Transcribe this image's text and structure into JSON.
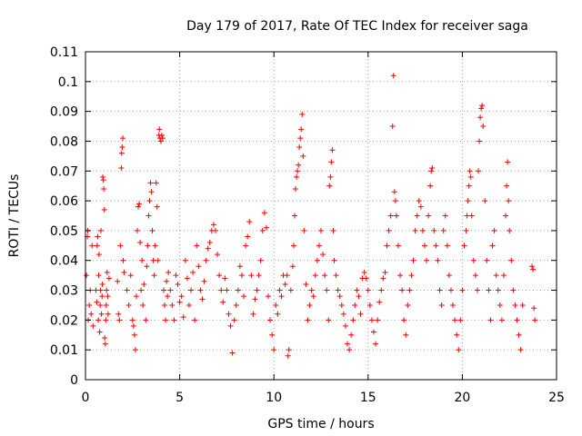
{
  "chart_data": {
    "type": "scatter",
    "title": "Day 179 of 2017, Rate Of TEC Index for receiver saga",
    "xlabel": "GPS time / hours",
    "ylabel": "ROTI / TECUs",
    "xlim": [
      0,
      25
    ],
    "ylim": [
      0,
      0.11
    ],
    "xticks": [
      0,
      5,
      10,
      15,
      20,
      25
    ],
    "yticks": [
      0,
      0.01,
      0.02,
      0.03,
      0.04,
      0.05,
      0.06,
      0.07,
      0.08,
      0.09,
      0.1,
      0.11
    ],
    "xtick_labels": [
      "0",
      "5",
      "10",
      "15",
      "20",
      "25"
    ],
    "ytick_labels": [
      "0",
      "0.01",
      "0.02",
      "0.03",
      "0.04",
      "0.05",
      "0.06",
      "0.07",
      "0.08",
      "0.09",
      "0.1",
      "0.11"
    ],
    "grid": true,
    "marker": "plus",
    "marker_color": "#ff0000",
    "series": [
      {
        "points": [
          [
            0.05,
            0.035
          ],
          [
            0.1,
            0.048
          ],
          [
            0.12,
            0.05
          ],
          [
            0.15,
            0.02
          ],
          [
            0.2,
            0.025
          ],
          [
            0.25,
            0.03
          ],
          [
            0.3,
            0.022
          ],
          [
            0.35,
            0.045
          ],
          [
            0.4,
            0.018
          ],
          [
            0.55,
            0.03
          ],
          [
            0.6,
            0.026
          ],
          [
            0.62,
            0.045
          ],
          [
            0.65,
            0.048
          ],
          [
            0.68,
            0.02
          ],
          [
            0.7,
            0.035
          ],
          [
            0.72,
            0.042
          ],
          [
            0.75,
            0.016
          ],
          [
            0.78,
            0.025
          ],
          [
            0.8,
            0.03
          ],
          [
            0.82,
            0.05
          ],
          [
            0.85,
            0.022
          ],
          [
            0.88,
            0.028
          ],
          [
            0.9,
            0.032
          ],
          [
            0.92,
            0.068
          ],
          [
            0.95,
            0.067
          ],
          [
            0.97,
            0.064
          ],
          [
            1.0,
            0.057
          ],
          [
            1.02,
            0.014
          ],
          [
            1.05,
            0.012
          ],
          [
            1.08,
            0.02
          ],
          [
            1.1,
            0.025
          ],
          [
            1.12,
            0.03
          ],
          [
            1.15,
            0.036
          ],
          [
            1.18,
            0.028
          ],
          [
            1.2,
            0.022
          ],
          [
            1.25,
            0.034
          ],
          [
            1.7,
            0.033
          ],
          [
            1.75,
            0.022
          ],
          [
            1.8,
            0.02
          ],
          [
            1.85,
            0.045
          ],
          [
            1.9,
            0.071
          ],
          [
            1.92,
            0.076
          ],
          [
            1.95,
            0.078
          ],
          [
            1.98,
            0.081
          ],
          [
            2.0,
            0.04
          ],
          [
            2.05,
            0.036
          ],
          [
            2.2,
            0.03
          ],
          [
            2.3,
            0.025
          ],
          [
            2.4,
            0.035
          ],
          [
            2.5,
            0.02
          ],
          [
            2.55,
            0.018
          ],
          [
            2.6,
            0.015
          ],
          [
            2.65,
            0.01
          ],
          [
            2.7,
            0.028
          ],
          [
            2.75,
            0.05
          ],
          [
            2.8,
            0.058
          ],
          [
            2.85,
            0.059
          ],
          [
            2.9,
            0.046
          ],
          [
            2.95,
            0.03
          ],
          [
            3.0,
            0.04
          ],
          [
            3.05,
            0.025
          ],
          [
            3.1,
            0.032
          ],
          [
            3.2,
            0.02
          ],
          [
            3.25,
            0.038
          ],
          [
            3.3,
            0.045
          ],
          [
            3.35,
            0.055
          ],
          [
            3.4,
            0.06
          ],
          [
            3.45,
            0.066
          ],
          [
            3.5,
            0.063
          ],
          [
            3.55,
            0.05
          ],
          [
            3.6,
            0.04
          ],
          [
            3.65,
            0.035
          ],
          [
            3.7,
            0.045
          ],
          [
            3.75,
            0.066
          ],
          [
            3.8,
            0.058
          ],
          [
            3.85,
            0.04
          ],
          [
            3.9,
            0.082
          ],
          [
            3.92,
            0.084
          ],
          [
            3.95,
            0.081
          ],
          [
            4.0,
            0.08
          ],
          [
            4.05,
            0.082
          ],
          [
            4.1,
            0.081
          ],
          [
            4.15,
            0.03
          ],
          [
            4.2,
            0.025
          ],
          [
            4.25,
            0.02
          ],
          [
            4.3,
            0.033
          ],
          [
            4.35,
            0.028
          ],
          [
            4.4,
            0.036
          ],
          [
            4.5,
            0.03
          ],
          [
            4.6,
            0.025
          ],
          [
            4.7,
            0.02
          ],
          [
            4.8,
            0.035
          ],
          [
            4.9,
            0.032
          ],
          [
            5.0,
            0.026
          ],
          [
            5.1,
            0.028
          ],
          [
            5.2,
            0.021
          ],
          [
            5.3,
            0.04
          ],
          [
            5.4,
            0.034
          ],
          [
            5.5,
            0.025
          ],
          [
            5.6,
            0.03
          ],
          [
            5.7,
            0.036
          ],
          [
            5.8,
            0.02
          ],
          [
            5.9,
            0.045
          ],
          [
            6.0,
            0.038
          ],
          [
            6.1,
            0.03
          ],
          [
            6.2,
            0.027
          ],
          [
            6.3,
            0.033
          ],
          [
            6.4,
            0.04
          ],
          [
            6.5,
            0.044
          ],
          [
            6.6,
            0.046
          ],
          [
            6.7,
            0.05
          ],
          [
            6.8,
            0.052
          ],
          [
            6.9,
            0.05
          ],
          [
            7.0,
            0.042
          ],
          [
            7.1,
            0.035
          ],
          [
            7.2,
            0.03
          ],
          [
            7.3,
            0.026
          ],
          [
            7.4,
            0.034
          ],
          [
            7.5,
            0.03
          ],
          [
            7.6,
            0.022
          ],
          [
            7.7,
            0.018
          ],
          [
            7.8,
            0.009
          ],
          [
            7.9,
            0.02
          ],
          [
            8.0,
            0.025
          ],
          [
            8.1,
            0.03
          ],
          [
            8.2,
            0.038
          ],
          [
            8.3,
            0.035
          ],
          [
            8.4,
            0.028
          ],
          [
            8.5,
            0.045
          ],
          [
            8.6,
            0.048
          ],
          [
            8.7,
            0.053
          ],
          [
            8.8,
            0.035
          ],
          [
            8.9,
            0.022
          ],
          [
            9.0,
            0.027
          ],
          [
            9.1,
            0.03
          ],
          [
            9.2,
            0.035
          ],
          [
            9.3,
            0.04
          ],
          [
            9.4,
            0.05
          ],
          [
            9.5,
            0.056
          ],
          [
            9.6,
            0.051
          ],
          [
            9.7,
            0.028
          ],
          [
            9.8,
            0.02
          ],
          [
            9.9,
            0.015
          ],
          [
            10.0,
            0.01
          ],
          [
            10.1,
            0.025
          ],
          [
            10.2,
            0.022
          ],
          [
            10.3,
            0.03
          ],
          [
            10.4,
            0.028
          ],
          [
            10.5,
            0.035
          ],
          [
            10.6,
            0.032
          ],
          [
            10.7,
            0.035
          ],
          [
            10.75,
            0.008
          ],
          [
            10.8,
            0.01
          ],
          [
            10.9,
            0.03
          ],
          [
            11.0,
            0.038
          ],
          [
            11.05,
            0.045
          ],
          [
            11.1,
            0.055
          ],
          [
            11.15,
            0.064
          ],
          [
            11.2,
            0.068
          ],
          [
            11.25,
            0.07
          ],
          [
            11.3,
            0.072
          ],
          [
            11.35,
            0.078
          ],
          [
            11.4,
            0.081
          ],
          [
            11.45,
            0.084
          ],
          [
            11.5,
            0.089
          ],
          [
            11.55,
            0.075
          ],
          [
            11.6,
            0.05
          ],
          [
            11.7,
            0.032
          ],
          [
            11.8,
            0.02
          ],
          [
            11.9,
            0.025
          ],
          [
            12.0,
            0.03
          ],
          [
            12.1,
            0.028
          ],
          [
            12.2,
            0.035
          ],
          [
            12.3,
            0.04
          ],
          [
            12.4,
            0.045
          ],
          [
            12.5,
            0.05
          ],
          [
            12.6,
            0.042
          ],
          [
            12.7,
            0.035
          ],
          [
            12.8,
            0.03
          ],
          [
            12.9,
            0.02
          ],
          [
            12.95,
            0.065
          ],
          [
            13.0,
            0.068
          ],
          [
            13.05,
            0.073
          ],
          [
            13.1,
            0.077
          ],
          [
            13.15,
            0.05
          ],
          [
            13.2,
            0.04
          ],
          [
            13.3,
            0.035
          ],
          [
            13.4,
            0.03
          ],
          [
            13.5,
            0.028
          ],
          [
            13.6,
            0.025
          ],
          [
            13.7,
            0.022
          ],
          [
            13.8,
            0.018
          ],
          [
            13.9,
            0.012
          ],
          [
            14.0,
            0.01
          ],
          [
            14.1,
            0.015
          ],
          [
            14.2,
            0.02
          ],
          [
            14.3,
            0.025
          ],
          [
            14.4,
            0.03
          ],
          [
            14.5,
            0.028
          ],
          [
            14.6,
            0.022
          ],
          [
            14.7,
            0.034
          ],
          [
            14.8,
            0.036
          ],
          [
            14.9,
            0.034
          ],
          [
            15.0,
            0.03
          ],
          [
            15.1,
            0.025
          ],
          [
            15.2,
            0.02
          ],
          [
            15.3,
            0.016
          ],
          [
            15.4,
            0.012
          ],
          [
            15.5,
            0.02
          ],
          [
            15.6,
            0.026
          ],
          [
            15.7,
            0.03
          ],
          [
            15.8,
            0.034
          ],
          [
            15.9,
            0.036
          ],
          [
            16.0,
            0.045
          ],
          [
            16.1,
            0.05
          ],
          [
            16.2,
            0.055
          ],
          [
            16.3,
            0.085
          ],
          [
            16.35,
            0.102
          ],
          [
            16.4,
            0.063
          ],
          [
            16.45,
            0.06
          ],
          [
            16.5,
            0.055
          ],
          [
            16.6,
            0.045
          ],
          [
            16.7,
            0.035
          ],
          [
            16.8,
            0.03
          ],
          [
            16.9,
            0.02
          ],
          [
            17.0,
            0.015
          ],
          [
            17.1,
            0.025
          ],
          [
            17.2,
            0.03
          ],
          [
            17.3,
            0.035
          ],
          [
            17.4,
            0.04
          ],
          [
            17.5,
            0.05
          ],
          [
            17.6,
            0.055
          ],
          [
            17.7,
            0.06
          ],
          [
            17.8,
            0.058
          ],
          [
            17.9,
            0.05
          ],
          [
            18.0,
            0.045
          ],
          [
            18.1,
            0.04
          ],
          [
            18.2,
            0.055
          ],
          [
            18.3,
            0.065
          ],
          [
            18.35,
            0.07
          ],
          [
            18.4,
            0.071
          ],
          [
            18.5,
            0.05
          ],
          [
            18.6,
            0.045
          ],
          [
            18.7,
            0.04
          ],
          [
            18.8,
            0.03
          ],
          [
            18.9,
            0.025
          ],
          [
            19.0,
            0.05
          ],
          [
            19.1,
            0.055
          ],
          [
            19.2,
            0.045
          ],
          [
            19.3,
            0.035
          ],
          [
            19.4,
            0.03
          ],
          [
            19.5,
            0.025
          ],
          [
            19.6,
            0.02
          ],
          [
            19.7,
            0.015
          ],
          [
            19.8,
            0.01
          ],
          [
            19.9,
            0.02
          ],
          [
            20.0,
            0.03
          ],
          [
            20.1,
            0.045
          ],
          [
            20.2,
            0.05
          ],
          [
            20.25,
            0.055
          ],
          [
            20.3,
            0.06
          ],
          [
            20.35,
            0.065
          ],
          [
            20.4,
            0.07
          ],
          [
            20.45,
            0.068
          ],
          [
            20.5,
            0.055
          ],
          [
            20.6,
            0.04
          ],
          [
            20.7,
            0.035
          ],
          [
            20.8,
            0.03
          ],
          [
            20.85,
            0.07
          ],
          [
            20.9,
            0.08
          ],
          [
            20.95,
            0.088
          ],
          [
            21.0,
            0.091
          ],
          [
            21.05,
            0.092
          ],
          [
            21.1,
            0.085
          ],
          [
            21.2,
            0.06
          ],
          [
            21.3,
            0.04
          ],
          [
            21.4,
            0.03
          ],
          [
            21.5,
            0.02
          ],
          [
            21.6,
            0.045
          ],
          [
            21.7,
            0.05
          ],
          [
            21.8,
            0.035
          ],
          [
            21.9,
            0.03
          ],
          [
            22.0,
            0.025
          ],
          [
            22.1,
            0.02
          ],
          [
            22.2,
            0.035
          ],
          [
            22.3,
            0.055
          ],
          [
            22.35,
            0.065
          ],
          [
            22.4,
            0.073
          ],
          [
            22.45,
            0.06
          ],
          [
            22.5,
            0.05
          ],
          [
            22.6,
            0.04
          ],
          [
            22.7,
            0.03
          ],
          [
            22.8,
            0.025
          ],
          [
            22.9,
            0.02
          ],
          [
            23.0,
            0.015
          ],
          [
            23.1,
            0.01
          ],
          [
            23.2,
            0.025
          ],
          [
            23.7,
            0.038
          ],
          [
            23.75,
            0.037
          ],
          [
            23.8,
            0.024
          ],
          [
            23.85,
            0.02
          ]
        ]
      }
    ]
  }
}
